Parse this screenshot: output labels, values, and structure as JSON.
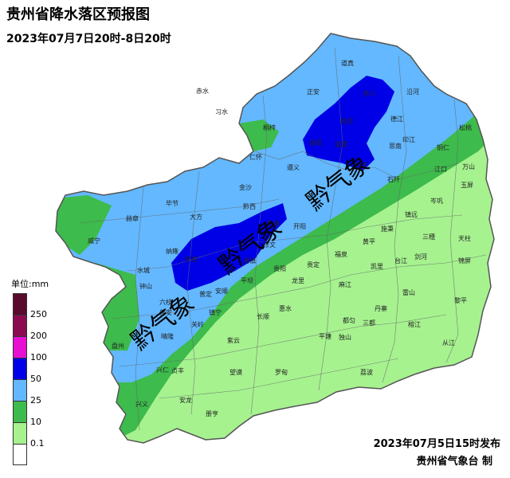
{
  "title": "贵州省降水落区预报图",
  "subtitle": "2023年07月7日20时-8日20时",
  "legend": {
    "unit": "单位:mm",
    "levels": [
      {
        "label": "250",
        "color": "#5a0a2d"
      },
      {
        "label": "200",
        "color": "#8b0a50"
      },
      {
        "label": "100",
        "color": "#e60fd2"
      },
      {
        "label": "50",
        "color": "#0000e6"
      },
      {
        "label": "25",
        "color": "#63b8ff"
      },
      {
        "label": "10",
        "color": "#3dbb4c"
      },
      {
        "label": "0.1",
        "color": "#a6f28f"
      },
      {
        "label": "",
        "color": "#ffffff"
      }
    ]
  },
  "footer": {
    "issued": "2023年07月5日15时发布",
    "maker": "贵州省气象台 制"
  },
  "watermark": "黔气象",
  "cities": [
    "道真",
    "正安",
    "务川",
    "沿河",
    "赤水",
    "习水",
    "桐梓",
    "凤冈",
    "德江",
    "松桃",
    "铜仁",
    "印江",
    "思南",
    "绥阳",
    "湄潭",
    "余庆",
    "石阡",
    "江口",
    "遵义",
    "金沙",
    "黔西",
    "仁怀",
    "万山",
    "玉屏",
    "毕节",
    "大方",
    "赫章",
    "纳雍",
    "织金",
    "威宁",
    "镇远",
    "施秉",
    "黄平",
    "三穗",
    "天柱",
    "岑巩",
    "修文",
    "开阳",
    "息烽",
    "凯里",
    "雷山",
    "台江",
    "剑河",
    "锦屏",
    "黎平",
    "从江",
    "榕江",
    "丹寨",
    "麻江",
    "都匀",
    "福泉",
    "贵定",
    "龙里",
    "贵阳",
    "清镇",
    "平坝",
    "安顺",
    "普定",
    "镇宁",
    "关岭",
    "紫云",
    "长顺",
    "惠水",
    "平塘",
    "独山",
    "三都",
    "荔波",
    "罗甸",
    "望谟",
    "册亨",
    "贞丰",
    "兴仁",
    "兴义",
    "安龙",
    "晴隆",
    "普安",
    "盘州",
    "水城",
    "六枝",
    "钟山"
  ]
}
